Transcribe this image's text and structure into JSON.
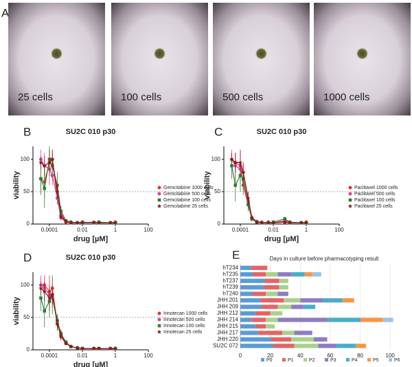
{
  "images": {
    "panel": "A",
    "labels": [
      "25 cells",
      "100 cells",
      "500 cells",
      "1000 cells"
    ]
  },
  "chart_data": [
    {
      "type": "line",
      "panel": "B",
      "title": "SU2C 010 p30",
      "xlabel": "drug [µM]",
      "ylabel": "viability",
      "xscale": "log",
      "xlim": [
        1e-05,
        100
      ],
      "xticks": [
        0.0001,
        0.01,
        1,
        100
      ],
      "ylim": [
        0,
        120
      ],
      "yticks": [
        0,
        50,
        100
      ],
      "reference_line": 50,
      "x": [
        3e-05,
        5e-05,
        0.0001,
        0.00015,
        0.0003,
        0.0005,
        0.001,
        0.002,
        0.005,
        0.01,
        0.05,
        0.1,
        0.5,
        1
      ],
      "series": [
        {
          "name": "Gemcitabine 1000 cells",
          "color": "#e53030",
          "marker": "circle",
          "values": [
            70,
            65,
            95,
            100,
            40,
            10,
            3,
            2,
            2,
            2,
            2,
            2,
            2,
            2
          ],
          "errors": [
            20,
            25,
            20,
            15,
            10,
            5,
            2,
            1,
            1,
            1,
            1,
            1,
            1,
            1
          ]
        },
        {
          "name": "Gemcitabine 500 cells",
          "color": "#e040a0",
          "marker": "circle",
          "values": [
            100,
            90,
            85,
            75,
            40,
            15,
            5,
            3,
            2,
            2,
            2,
            2,
            2,
            3
          ],
          "errors": [
            15,
            20,
            25,
            15,
            10,
            5,
            2,
            1,
            1,
            1,
            1,
            1,
            1,
            1
          ]
        },
        {
          "name": "Gemcitabine 100 cells",
          "color": "#2e7d32",
          "marker": "square",
          "values": [
            70,
            55,
            100,
            90,
            60,
            20,
            5,
            3,
            2,
            3,
            2,
            3,
            2,
            2
          ],
          "errors": [
            25,
            30,
            20,
            20,
            20,
            8,
            2,
            1,
            1,
            1,
            1,
            1,
            1,
            1
          ]
        },
        {
          "name": "Gemcitabine 25 cells",
          "color": "#8b1a1a",
          "marker": "star",
          "values": [
            95,
            90,
            95,
            100,
            50,
            12,
            4,
            2,
            2,
            2,
            3,
            2,
            2,
            2
          ],
          "errors": [
            10,
            15,
            20,
            15,
            10,
            5,
            2,
            1,
            1,
            1,
            1,
            1,
            1,
            1
          ]
        }
      ]
    },
    {
      "type": "line",
      "panel": "C",
      "title": "SU2C 010 p30",
      "xlabel": "drug [µM]",
      "ylabel": "viability",
      "xscale": "log",
      "xlim": [
        1e-05,
        100
      ],
      "xticks": [
        0.0001,
        0.01,
        1,
        100
      ],
      "ylim": [
        0,
        120
      ],
      "yticks": [
        0,
        50,
        100
      ],
      "reference_line": 50,
      "x": [
        3e-05,
        5e-05,
        0.0001,
        0.00015,
        0.0003,
        0.0005,
        0.001,
        0.002,
        0.005,
        0.01,
        0.05,
        0.1,
        0.5,
        1
      ],
      "series": [
        {
          "name": "Paclitaxel 1000 cells",
          "color": "#e53030",
          "marker": "circle",
          "values": [
            100,
            95,
            90,
            60,
            30,
            8,
            3,
            2,
            3,
            2,
            5,
            3,
            2,
            3
          ],
          "errors": [
            10,
            15,
            20,
            15,
            10,
            4,
            2,
            1,
            1,
            1,
            2,
            1,
            1,
            1
          ]
        },
        {
          "name": "Paclitaxel 500 cells",
          "color": "#e040a0",
          "marker": "circle",
          "values": [
            100,
            90,
            85,
            80,
            35,
            10,
            4,
            3,
            2,
            2,
            3,
            2,
            2,
            2
          ],
          "errors": [
            15,
            20,
            20,
            15,
            10,
            4,
            2,
            1,
            1,
            1,
            1,
            1,
            1,
            1
          ]
        },
        {
          "name": "Paclitaxel 100 cells",
          "color": "#2e7d32",
          "marker": "square",
          "values": [
            90,
            60,
            75,
            70,
            30,
            8,
            3,
            2,
            2,
            3,
            8,
            3,
            2,
            2
          ],
          "errors": [
            20,
            25,
            25,
            20,
            10,
            4,
            2,
            1,
            1,
            1,
            3,
            1,
            1,
            1
          ]
        },
        {
          "name": "Paclitaxel 25 cells",
          "color": "#8b1a1a",
          "marker": "star",
          "values": [
            100,
            95,
            95,
            80,
            40,
            10,
            3,
            2,
            2,
            2,
            3,
            2,
            2,
            2
          ],
          "errors": [
            10,
            15,
            20,
            15,
            10,
            4,
            2,
            1,
            1,
            1,
            1,
            1,
            1,
            1
          ]
        }
      ]
    },
    {
      "type": "line",
      "panel": "D",
      "title": "SU2C 010 p30",
      "xlabel": "drug [µM]",
      "ylabel": "viability",
      "xscale": "log",
      "xlim": [
        1e-05,
        100
      ],
      "xticks": [
        0.0001,
        0.01,
        1,
        100
      ],
      "ylim": [
        0,
        120
      ],
      "yticks": [
        0,
        50,
        100
      ],
      "reference_line": 50,
      "x": [
        3e-05,
        5e-05,
        0.0001,
        0.00015,
        0.0003,
        0.0005,
        0.001,
        0.002,
        0.005,
        0.01,
        0.05,
        0.1,
        0.5,
        1
      ],
      "series": [
        {
          "name": "Irinotecan 1000 cells",
          "color": "#e53030",
          "marker": "circle",
          "values": [
            100,
            100,
            90,
            95,
            40,
            20,
            10,
            5,
            3,
            2,
            2,
            2,
            2,
            2
          ],
          "errors": [
            10,
            15,
            25,
            15,
            10,
            6,
            3,
            2,
            1,
            1,
            1,
            1,
            1,
            1
          ]
        },
        {
          "name": "Irinotecan 500 cells",
          "color": "#e040a0",
          "marker": "circle",
          "values": [
            100,
            95,
            85,
            80,
            45,
            25,
            10,
            5,
            3,
            2,
            2,
            2,
            2,
            2
          ],
          "errors": [
            15,
            20,
            20,
            15,
            10,
            6,
            3,
            2,
            1,
            1,
            1,
            1,
            1,
            1
          ]
        },
        {
          "name": "Irinotecan 100 cells",
          "color": "#2e7d32",
          "marker": "square",
          "values": [
            80,
            60,
            75,
            85,
            45,
            25,
            12,
            5,
            3,
            2,
            2,
            2,
            2,
            2
          ],
          "errors": [
            20,
            25,
            25,
            30,
            10,
            6,
            3,
            2,
            1,
            1,
            1,
            1,
            1,
            1
          ]
        },
        {
          "name": "Irinotecan 25 cells",
          "color": "#8b1a1a",
          "marker": "star",
          "values": [
            95,
            90,
            80,
            85,
            40,
            22,
            10,
            5,
            3,
            2,
            2,
            2,
            2,
            2
          ],
          "errors": [
            10,
            15,
            20,
            15,
            10,
            6,
            3,
            2,
            1,
            1,
            1,
            1,
            1,
            1
          ]
        }
      ]
    },
    {
      "type": "bar",
      "orientation": "horizontal",
      "stacked": true,
      "panel": "E",
      "title": "Days in culture before pharmacotyping result",
      "categories": [
        "hT234",
        "hT235",
        "hT237",
        "hT239",
        "hT240",
        "JHH 201",
        "JHH 209",
        "JHH 212",
        "JHH 214",
        "JHH 215",
        "JHH 217",
        "JHH 220",
        "SU2C 072"
      ],
      "xlim": [
        0,
        110
      ],
      "xticks": [
        0,
        20,
        40,
        60,
        80,
        100
      ],
      "grid": true,
      "series": [
        {
          "name": "P0",
          "color": "#5b9bd5",
          "values": [
            7,
            8,
            16,
            15,
            8,
            13,
            14,
            10,
            7,
            10,
            12,
            20,
            22
          ]
        },
        {
          "name": "P1",
          "color": "#e06666",
          "values": [
            11,
            9,
            10,
            11,
            9,
            16,
            11,
            10,
            10,
            7,
            16,
            14,
            14
          ]
        },
        {
          "name": "P2",
          "color": "#a9d18e",
          "values": [
            null,
            8,
            6,
            6,
            8,
            11,
            9,
            8,
            8,
            6,
            8,
            15,
            16
          ]
        },
        {
          "name": "P3",
          "color": "#8e7cc3",
          "values": [
            null,
            9,
            null,
            null,
            7,
            15,
            8,
            null,
            33,
            null,
            12,
            9,
            12
          ]
        },
        {
          "name": "P4",
          "color": "#4bacc6",
          "values": [
            null,
            9,
            null,
            null,
            null,
            13,
            8,
            null,
            22,
            null,
            null,
            null,
            13
          ]
        },
        {
          "name": "P5",
          "color": "#f79646",
          "values": [
            null,
            5,
            null,
            null,
            null,
            8,
            null,
            null,
            15,
            null,
            null,
            null,
            7
          ]
        },
        {
          "name": "P6",
          "color": "#9dc3e6",
          "values": [
            null,
            6,
            null,
            null,
            null,
            null,
            null,
            null,
            7,
            null,
            null,
            null,
            null
          ]
        }
      ]
    }
  ]
}
